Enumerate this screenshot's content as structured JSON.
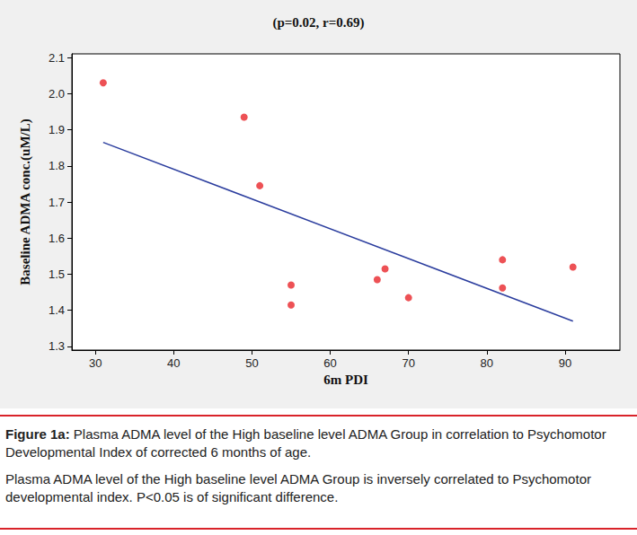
{
  "chart_data": {
    "type": "scatter",
    "title": "(p=0.02, r=0.69)",
    "x_label": "6m PDI",
    "y_label": "Baseline ADMA conc.(uM/L)",
    "xlim": [
      27,
      97
    ],
    "xticks": [
      30,
      40,
      50,
      60,
      70,
      80,
      90
    ],
    "ylim": [
      1.29,
      2.11
    ],
    "yticks": [
      1.3,
      1.4,
      1.5,
      1.6,
      1.7,
      1.8,
      1.9,
      {
        "value": 2,
        "label": "2.0"
      },
      2.1
    ],
    "grid": false,
    "series": [
      {
        "type": "scatter",
        "color": "#e8262a",
        "marker": "circle",
        "x": [
          31,
          49,
          51,
          55,
          55,
          66,
          67,
          70,
          82,
          82,
          91
        ],
        "values": [
          2.03,
          1.935,
          1.745,
          1.47,
          1.415,
          1.485,
          1.515,
          1.435,
          1.54,
          1.462,
          1.52
        ]
      },
      {
        "type": "line",
        "color": "#2b3d9e",
        "line_style": "solid",
        "x": [
          31,
          91
        ],
        "values": [
          1.865,
          1.37
        ]
      }
    ]
  },
  "caption": {
    "title": "Figure 1a:",
    "text": "Plasma ADMA level of the High baseline level ADMA Group in correlation to Psychomotor Developmental Index of corrected 6 months of age.",
    "note": "Plasma ADMA level of the High baseline level ADMA Group is inversely correlated to Psychomotor developmental index. P<0.05 is of significant difference."
  }
}
